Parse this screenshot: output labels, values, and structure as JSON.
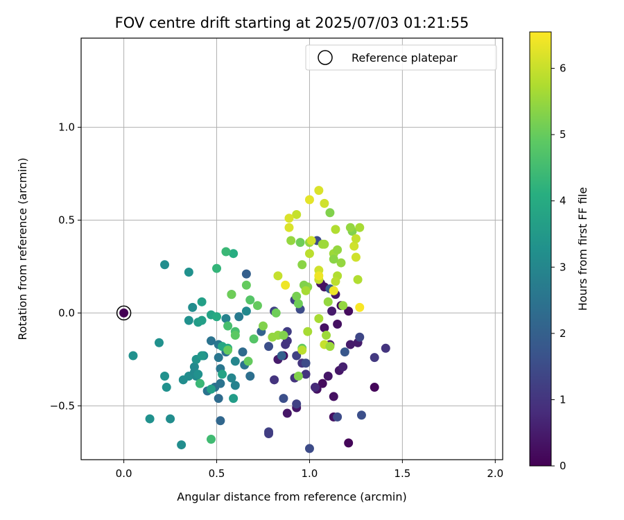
{
  "chart_data": {
    "type": "scatter",
    "title": "FOV centre drift starting at 2025/07/03 01:21:55",
    "xlabel": "Angular distance from reference (arcmin)",
    "ylabel": "Rotation from reference (arcmin)",
    "xlim": [
      -0.23,
      2.04
    ],
    "ylim": [
      -0.79,
      1.48
    ],
    "xticks": [
      "0.0",
      "0.5",
      "1.0",
      "1.5",
      "2.0"
    ],
    "xtick_values": [
      0.0,
      0.5,
      1.0,
      1.5,
      2.0
    ],
    "yticks": [
      "−0.5",
      "0.0",
      "0.5",
      "1.0"
    ],
    "ytick_values": [
      -0.5,
      0.0,
      0.5,
      1.0
    ],
    "grid": true,
    "legend_position": "top-right",
    "legend": [
      {
        "label": "Reference platepar",
        "marker": "open-circle"
      }
    ],
    "colorbar": {
      "label": "Hours from first FF file",
      "range": [
        0,
        6.55
      ],
      "ticks": [
        "0",
        "1",
        "2",
        "3",
        "4",
        "5",
        "6"
      ],
      "tick_values": [
        0,
        1,
        2,
        3,
        4,
        5,
        6
      ],
      "colormap": "viridis"
    },
    "reference_point": {
      "x": 0.0,
      "y": 0.0,
      "c": 0.0
    },
    "points": [
      {
        "x": 1.35,
        "y": -0.4,
        "c": 0.1
      },
      {
        "x": 1.21,
        "y": -0.7,
        "c": 0.1
      },
      {
        "x": 1.07,
        "y": -0.38,
        "c": 0.2
      },
      {
        "x": 1.04,
        "y": -0.41,
        "c": 0.3
      },
      {
        "x": 1.13,
        "y": -0.56,
        "c": 0.3
      },
      {
        "x": 1.16,
        "y": -0.31,
        "c": 0.4
      },
      {
        "x": 1.15,
        "y": -0.06,
        "c": 0.3
      },
      {
        "x": 1.08,
        "y": -0.08,
        "c": 0.3
      },
      {
        "x": 1.1,
        "y": -0.34,
        "c": 0.4
      },
      {
        "x": 1.13,
        "y": -0.45,
        "c": 0.3
      },
      {
        "x": 0.86,
        "y": -0.23,
        "c": 0.2
      },
      {
        "x": 0.88,
        "y": -0.54,
        "c": 0.4
      },
      {
        "x": 0.83,
        "y": -0.25,
        "c": 0.5
      },
      {
        "x": 0.93,
        "y": -0.51,
        "c": 0.4
      },
      {
        "x": 1.11,
        "y": -0.17,
        "c": 0.5
      },
      {
        "x": 1.18,
        "y": -0.29,
        "c": 0.6
      },
      {
        "x": 1.22,
        "y": -0.17,
        "c": 0.5
      },
      {
        "x": 1.26,
        "y": -0.16,
        "c": 0.5
      },
      {
        "x": 1.06,
        "y": 0.16,
        "c": 0.3
      },
      {
        "x": 1.08,
        "y": 0.14,
        "c": 0.3
      },
      {
        "x": 1.14,
        "y": 0.1,
        "c": 0.4
      },
      {
        "x": 1.21,
        "y": 0.01,
        "c": 0.2
      },
      {
        "x": 1.17,
        "y": 0.04,
        "c": 0.2
      },
      {
        "x": 1.12,
        "y": 0.01,
        "c": 0.5
      },
      {
        "x": 1.41,
        "y": -0.19,
        "c": 1.0
      },
      {
        "x": 1.35,
        "y": -0.24,
        "c": 1.1
      },
      {
        "x": 1.27,
        "y": -0.13,
        "c": 1.4
      },
      {
        "x": 1.28,
        "y": -0.55,
        "c": 1.6
      },
      {
        "x": 1.15,
        "y": -0.56,
        "c": 1.5
      },
      {
        "x": 1.03,
        "y": -0.4,
        "c": 0.8
      },
      {
        "x": 0.98,
        "y": -0.33,
        "c": 1.0
      },
      {
        "x": 0.96,
        "y": -0.27,
        "c": 1.0
      },
      {
        "x": 0.92,
        "y": -0.35,
        "c": 1.0
      },
      {
        "x": 0.93,
        "y": -0.49,
        "c": 1.3
      },
      {
        "x": 0.86,
        "y": -0.46,
        "c": 1.6
      },
      {
        "x": 0.78,
        "y": -0.64,
        "c": 1.3
      },
      {
        "x": 0.78,
        "y": -0.65,
        "c": 1.2
      },
      {
        "x": 0.81,
        "y": -0.36,
        "c": 1.0
      },
      {
        "x": 0.88,
        "y": -0.15,
        "c": 1.0
      },
      {
        "x": 0.88,
        "y": -0.1,
        "c": 1.2
      },
      {
        "x": 0.87,
        "y": -0.17,
        "c": 1.0
      },
      {
        "x": 0.93,
        "y": -0.23,
        "c": 1.3
      },
      {
        "x": 0.98,
        "y": -0.27,
        "c": 1.5
      },
      {
        "x": 0.92,
        "y": 0.07,
        "c": 1.3
      },
      {
        "x": 0.95,
        "y": 0.02,
        "c": 1.5
      },
      {
        "x": 0.81,
        "y": 0.01,
        "c": 1.3
      },
      {
        "x": 0.78,
        "y": -0.18,
        "c": 1.6
      },
      {
        "x": 1.0,
        "y": -0.73,
        "c": 1.5
      },
      {
        "x": 1.19,
        "y": -0.21,
        "c": 1.8
      },
      {
        "x": 1.11,
        "y": 0.13,
        "c": 1.9
      },
      {
        "x": 1.04,
        "y": 0.39,
        "c": 1.5
      },
      {
        "x": 0.66,
        "y": 0.21,
        "c": 2.0
      },
      {
        "x": 0.85,
        "y": -0.23,
        "c": 2.0
      },
      {
        "x": 0.74,
        "y": -0.1,
        "c": 2.1
      },
      {
        "x": 0.64,
        "y": -0.21,
        "c": 2.3
      },
      {
        "x": 0.65,
        "y": -0.28,
        "c": 2.5
      },
      {
        "x": 0.68,
        "y": -0.34,
        "c": 2.4
      },
      {
        "x": 0.51,
        "y": -0.46,
        "c": 2.3
      },
      {
        "x": 0.52,
        "y": -0.58,
        "c": 2.2
      },
      {
        "x": 0.52,
        "y": -0.3,
        "c": 2.6
      },
      {
        "x": 0.55,
        "y": -0.21,
        "c": 2.4
      },
      {
        "x": 0.51,
        "y": -0.17,
        "c": 2.6
      },
      {
        "x": 0.47,
        "y": -0.15,
        "c": 2.5
      },
      {
        "x": 0.51,
        "y": -0.24,
        "c": 2.6
      },
      {
        "x": 0.45,
        "y": -0.42,
        "c": 2.5
      },
      {
        "x": 0.49,
        "y": -0.4,
        "c": 2.4
      },
      {
        "x": 0.52,
        "y": -0.38,
        "c": 2.5
      },
      {
        "x": 0.58,
        "y": 0.1,
        "c": 2.5
      },
      {
        "x": 0.62,
        "y": -0.02,
        "c": 2.7
      },
      {
        "x": 0.55,
        "y": -0.03,
        "c": 2.9
      },
      {
        "x": 0.6,
        "y": -0.39,
        "c": 2.9
      },
      {
        "x": 0.58,
        "y": -0.35,
        "c": 3.0
      },
      {
        "x": 0.6,
        "y": -0.26,
        "c": 3.0
      },
      {
        "x": 0.66,
        "y": 0.01,
        "c": 3.1
      },
      {
        "x": 0.43,
        "y": -0.23,
        "c": 3.1
      },
      {
        "x": 0.41,
        "y": -0.38,
        "c": 3.1
      },
      {
        "x": 0.38,
        "y": -0.29,
        "c": 3.1
      },
      {
        "x": 0.39,
        "y": -0.34,
        "c": 3.1
      },
      {
        "x": 0.35,
        "y": -0.34,
        "c": 3.2
      },
      {
        "x": 0.38,
        "y": -0.32,
        "c": 3.1
      },
      {
        "x": 0.4,
        "y": -0.33,
        "c": 3.3
      },
      {
        "x": 0.32,
        "y": -0.36,
        "c": 3.2
      },
      {
        "x": 0.31,
        "y": -0.71,
        "c": 3.2
      },
      {
        "x": 0.25,
        "y": -0.57,
        "c": 3.2
      },
      {
        "x": 0.14,
        "y": -0.57,
        "c": 3.3
      },
      {
        "x": 0.23,
        "y": -0.4,
        "c": 3.3
      },
      {
        "x": 0.22,
        "y": -0.34,
        "c": 3.3
      },
      {
        "x": 0.19,
        "y": -0.16,
        "c": 3.3
      },
      {
        "x": 0.05,
        "y": -0.23,
        "c": 3.3
      },
      {
        "x": 0.35,
        "y": -0.04,
        "c": 3.3
      },
      {
        "x": 0.37,
        "y": 0.03,
        "c": 3.2
      },
      {
        "x": 0.35,
        "y": 0.22,
        "c": 3.3
      },
      {
        "x": 0.22,
        "y": 0.26,
        "c": 3.2
      },
      {
        "x": 0.39,
        "y": -0.25,
        "c": 3.4
      },
      {
        "x": 0.42,
        "y": -0.23,
        "c": 3.5
      },
      {
        "x": 0.4,
        "y": -0.05,
        "c": 3.6
      },
      {
        "x": 0.42,
        "y": -0.04,
        "c": 3.7
      },
      {
        "x": 0.42,
        "y": 0.06,
        "c": 3.7
      },
      {
        "x": 0.47,
        "y": -0.01,
        "c": 3.8
      },
      {
        "x": 0.5,
        "y": -0.02,
        "c": 4.0
      },
      {
        "x": 0.47,
        "y": -0.41,
        "c": 3.7
      },
      {
        "x": 0.59,
        "y": -0.46,
        "c": 3.6
      },
      {
        "x": 0.53,
        "y": -0.18,
        "c": 3.9
      },
      {
        "x": 0.56,
        "y": -0.19,
        "c": 4.0
      },
      {
        "x": 0.53,
        "y": -0.33,
        "c": 3.8
      },
      {
        "x": 0.5,
        "y": 0.24,
        "c": 4.3
      },
      {
        "x": 0.59,
        "y": 0.32,
        "c": 4.1
      },
      {
        "x": 0.55,
        "y": 0.33,
        "c": 4.4
      },
      {
        "x": 0.41,
        "y": -0.38,
        "c": 4.4
      },
      {
        "x": 0.47,
        "y": -0.68,
        "c": 4.5
      },
      {
        "x": 0.56,
        "y": -0.07,
        "c": 4.6
      },
      {
        "x": 0.6,
        "y": -0.1,
        "c": 4.6
      },
      {
        "x": 0.6,
        "y": -0.12,
        "c": 4.9
      },
      {
        "x": 0.7,
        "y": -0.14,
        "c": 4.8
      },
      {
        "x": 0.56,
        "y": -0.2,
        "c": 5.0
      },
      {
        "x": 0.67,
        "y": -0.26,
        "c": 5.0
      },
      {
        "x": 0.68,
        "y": 0.07,
        "c": 4.8
      },
      {
        "x": 0.72,
        "y": 0.04,
        "c": 5.0
      },
      {
        "x": 0.66,
        "y": 0.15,
        "c": 5.0
      },
      {
        "x": 0.58,
        "y": 0.1,
        "c": 5.1
      },
      {
        "x": 0.75,
        "y": -0.07,
        "c": 5.3
      },
      {
        "x": 0.82,
        "y": -0.0,
        "c": 5.1
      },
      {
        "x": 0.8,
        "y": -0.13,
        "c": 5.5
      },
      {
        "x": 0.83,
        "y": -0.12,
        "c": 5.5
      },
      {
        "x": 0.86,
        "y": -0.12,
        "c": 5.3
      },
      {
        "x": 0.94,
        "y": -0.34,
        "c": 5.3
      },
      {
        "x": 0.96,
        "y": -0.19,
        "c": 5.0
      },
      {
        "x": 0.94,
        "y": 0.05,
        "c": 5.1
      },
      {
        "x": 0.93,
        "y": 0.09,
        "c": 5.2
      },
      {
        "x": 0.99,
        "y": 0.14,
        "c": 5.4
      },
      {
        "x": 0.97,
        "y": 0.15,
        "c": 5.3
      },
      {
        "x": 0.96,
        "y": 0.26,
        "c": 5.4
      },
      {
        "x": 0.98,
        "y": 0.12,
        "c": 5.7
      },
      {
        "x": 1.0,
        "y": 0.38,
        "c": 5.5
      },
      {
        "x": 1.07,
        "y": 0.37,
        "c": 5.6
      },
      {
        "x": 0.95,
        "y": 0.38,
        "c": 5.1
      },
      {
        "x": 0.9,
        "y": 0.39,
        "c": 5.5
      },
      {
        "x": 1.0,
        "y": 0.32,
        "c": 5.9
      },
      {
        "x": 1.05,
        "y": -0.03,
        "c": 5.7
      },
      {
        "x": 1.09,
        "y": -0.12,
        "c": 5.6
      },
      {
        "x": 1.08,
        "y": -0.17,
        "c": 6.0
      },
      {
        "x": 1.11,
        "y": -0.18,
        "c": 5.6
      },
      {
        "x": 0.99,
        "y": -0.1,
        "c": 5.7
      },
      {
        "x": 0.96,
        "y": -0.2,
        "c": 5.9
      },
      {
        "x": 1.1,
        "y": 0.06,
        "c": 5.5
      },
      {
        "x": 1.18,
        "y": 0.04,
        "c": 5.5
      },
      {
        "x": 1.13,
        "y": 0.32,
        "c": 5.6
      },
      {
        "x": 1.17,
        "y": 0.27,
        "c": 5.5
      },
      {
        "x": 1.13,
        "y": 0.29,
        "c": 5.4
      },
      {
        "x": 1.15,
        "y": 0.34,
        "c": 5.5
      },
      {
        "x": 1.08,
        "y": 0.37,
        "c": 5.6
      },
      {
        "x": 1.11,
        "y": 0.54,
        "c": 5.3
      },
      {
        "x": 1.23,
        "y": 0.44,
        "c": 5.3
      },
      {
        "x": 1.22,
        "y": 0.46,
        "c": 5.5
      },
      {
        "x": 1.27,
        "y": 0.46,
        "c": 5.7
      },
      {
        "x": 1.14,
        "y": 0.45,
        "c": 5.8
      },
      {
        "x": 1.15,
        "y": 0.2,
        "c": 5.8
      },
      {
        "x": 1.14,
        "y": 0.17,
        "c": 5.9
      },
      {
        "x": 1.26,
        "y": 0.18,
        "c": 5.8
      },
      {
        "x": 1.05,
        "y": 0.18,
        "c": 6.0
      },
      {
        "x": 1.05,
        "y": 0.23,
        "c": 6.1
      },
      {
        "x": 1.13,
        "y": 0.12,
        "c": 6.2
      },
      {
        "x": 1.24,
        "y": 0.36,
        "c": 6.1
      },
      {
        "x": 1.25,
        "y": 0.4,
        "c": 6.0
      },
      {
        "x": 1.25,
        "y": 0.3,
        "c": 6.1
      },
      {
        "x": 1.13,
        "y": 0.12,
        "c": 6.4
      },
      {
        "x": 1.27,
        "y": 0.03,
        "c": 6.5
      },
      {
        "x": 1.01,
        "y": 0.39,
        "c": 6.1
      },
      {
        "x": 1.08,
        "y": 0.59,
        "c": 6.1
      },
      {
        "x": 1.05,
        "y": 0.66,
        "c": 6.2
      },
      {
        "x": 1.0,
        "y": 0.61,
        "c": 6.3
      },
      {
        "x": 0.93,
        "y": 0.53,
        "c": 6.0
      },
      {
        "x": 0.89,
        "y": 0.51,
        "c": 6.2
      },
      {
        "x": 0.89,
        "y": 0.46,
        "c": 6.2
      },
      {
        "x": 0.83,
        "y": 0.2,
        "c": 6.0
      },
      {
        "x": 0.87,
        "y": 0.15,
        "c": 6.4
      },
      {
        "x": 1.05,
        "y": 0.2,
        "c": 6.4
      }
    ]
  }
}
